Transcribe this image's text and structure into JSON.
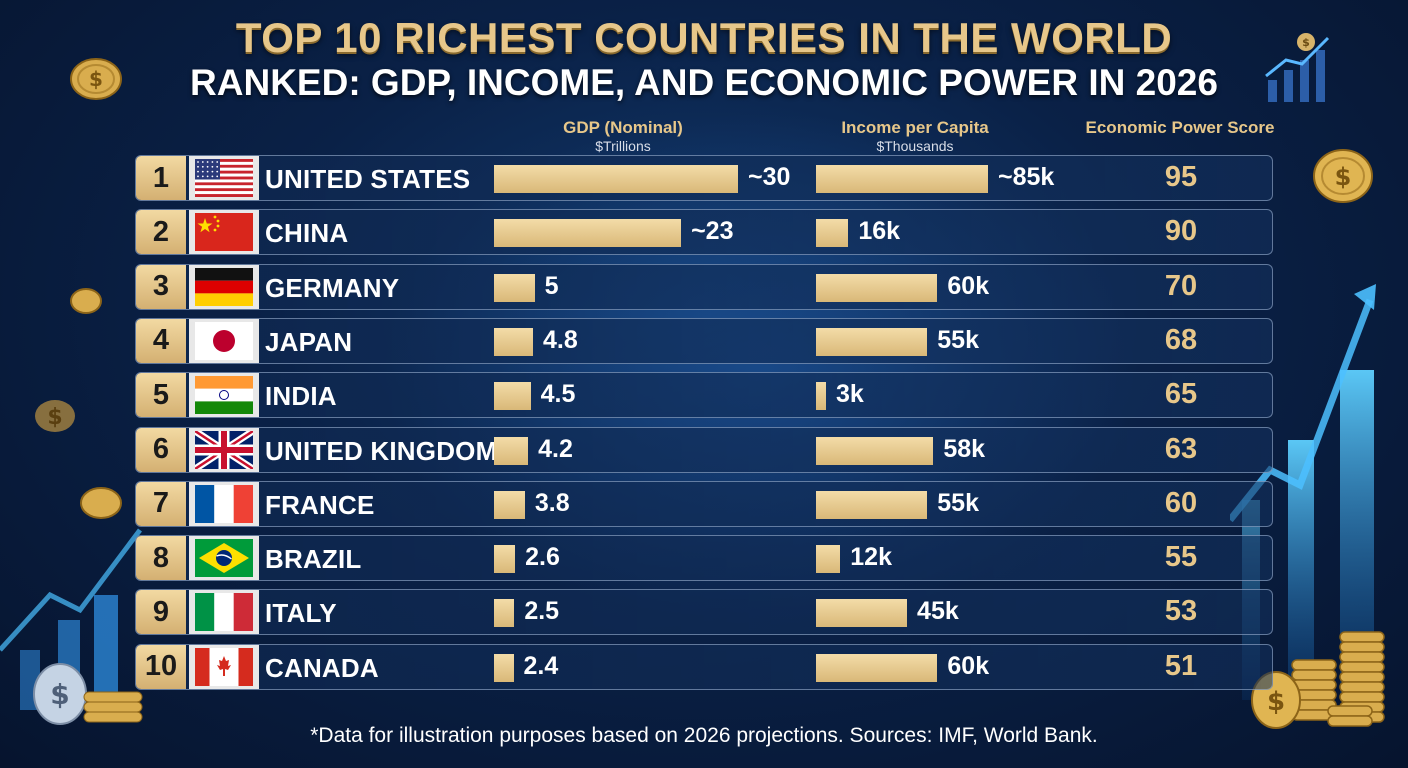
{
  "header": {
    "title": "TOP 10 RICHEST COUNTRIES IN THE WORLD",
    "subtitle": "RANKED: GDP, INCOME, AND ECONOMIC POWER IN 2026"
  },
  "columns": {
    "gdp": {
      "label": "GDP (Nominal)",
      "unit": "$Trillions"
    },
    "income": {
      "label": "Income per Capita",
      "unit": "$Thousands"
    },
    "score": {
      "label": "Economic Power Score"
    }
  },
  "chart_data": {
    "type": "table",
    "title": "TOP 10 RICHEST COUNTRIES IN THE WORLD",
    "subtitle": "RANKED: GDP, INCOME, AND ECONOMIC POWER IN 2026",
    "categories": [
      "UNITED STATES",
      "CHINA",
      "GERMANY",
      "JAPAN",
      "INDIA",
      "UNITED KINGDOM",
      "FRANCE",
      "BRAZIL",
      "ITALY",
      "CANADA"
    ],
    "series": [
      {
        "name": "GDP (Nominal)",
        "values": [
          30,
          23,
          5,
          4.8,
          4.5,
          4.2,
          3.8,
          2.6,
          2.5,
          2.4
        ]
      },
      {
        "name": "Income per Capita",
        "values": [
          85,
          16,
          60,
          55,
          3,
          58,
          55,
          12,
          45,
          60
        ]
      },
      {
        "name": "Economic Power Score",
        "values": [
          95,
          90,
          70,
          68,
          65,
          63,
          60,
          55,
          53,
          51
        ]
      }
    ],
    "rows": [
      {
        "rank": "1",
        "country": "UNITED STATES",
        "flag": "us-flag-icon",
        "gdp": 30,
        "gdp_label": "~30",
        "income": 85,
        "income_label": "~85k",
        "score": "95"
      },
      {
        "rank": "2",
        "country": "CHINA",
        "flag": "china-flag-icon",
        "gdp": 23,
        "gdp_label": "~23",
        "income": 16,
        "income_label": "16k",
        "score": "90"
      },
      {
        "rank": "3",
        "country": "GERMANY",
        "flag": "germany-flag-icon",
        "gdp": 5,
        "gdp_label": "5",
        "income": 60,
        "income_label": "60k",
        "score": "70"
      },
      {
        "rank": "4",
        "country": "JAPAN",
        "flag": "japan-flag-icon",
        "gdp": 4.8,
        "gdp_label": "4.8",
        "income": 55,
        "income_label": "55k",
        "score": "68"
      },
      {
        "rank": "5",
        "country": "INDIA",
        "flag": "india-flag-icon",
        "gdp": 4.5,
        "gdp_label": "4.5",
        "income": 3,
        "income_label": "3k",
        "score": "65"
      },
      {
        "rank": "6",
        "country": "UNITED KINGDOM",
        "flag": "uk-flag-icon",
        "gdp": 4.2,
        "gdp_label": "4.2",
        "income": 58,
        "income_label": "58k",
        "score": "63"
      },
      {
        "rank": "7",
        "country": "FRANCE",
        "flag": "france-flag-icon",
        "gdp": 3.8,
        "gdp_label": "3.8",
        "income": 55,
        "income_label": "55k",
        "score": "60"
      },
      {
        "rank": "8",
        "country": "BRAZIL",
        "flag": "brazil-flag-icon",
        "gdp": 2.6,
        "gdp_label": "2.6",
        "income": 12,
        "income_label": "12k",
        "score": "55"
      },
      {
        "rank": "9",
        "country": "ITALY",
        "flag": "italy-flag-icon",
        "gdp": 2.5,
        "gdp_label": "2.5",
        "income": 45,
        "income_label": "45k",
        "score": "53"
      },
      {
        "rank": "10",
        "country": "CANADA",
        "flag": "canada-flag-icon",
        "gdp": 2.4,
        "gdp_label": "2.4",
        "income": 60,
        "income_label": "60k",
        "score": "51"
      }
    ]
  },
  "footer": "*Data for illustration purposes based on 2026 projections. Sources: IMF, World Bank.",
  "colors": {
    "gold": "#e7c78a",
    "bar": "#d9b878",
    "background": "#0a2147"
  },
  "decorations": [
    "gold-coin-icon",
    "dollar-coin-icon",
    "coin-stack-icon",
    "growth-chart-icon",
    "rising-arrow-icon"
  ]
}
